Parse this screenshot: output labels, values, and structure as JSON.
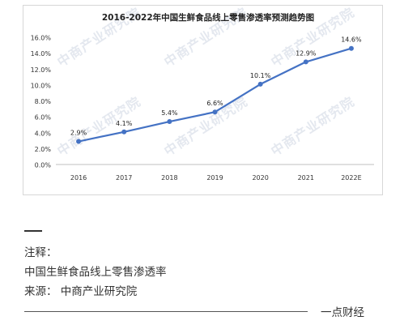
{
  "chart_data": {
    "type": "line",
    "title": "2016-2022年中国生鲜食品线上零售渗透率预测趋势图",
    "categories": [
      "2016",
      "2017",
      "2018",
      "2019",
      "2020",
      "2021",
      "2022E"
    ],
    "values": [
      2.9,
      4.1,
      5.4,
      6.6,
      10.1,
      12.9,
      14.6
    ],
    "data_labels": [
      "2.9%",
      "4.1%",
      "5.4%",
      "6.6%",
      "10.1%",
      "12.9%",
      "14.6%"
    ],
    "y_ticks": [
      "0.0%",
      "2.0%",
      "4.0%",
      "6.0%",
      "8.0%",
      "10.0%",
      "12.0%",
      "14.0%",
      "16.0%"
    ],
    "ylim": [
      0,
      16
    ],
    "ylabel": "",
    "xlabel": "",
    "grid": false,
    "legend": "none",
    "line_color": "#4472c4"
  },
  "watermark": {
    "text": "中商产业研究院"
  },
  "notes": {
    "label": "注释：",
    "description": "中国生鲜食品线上零售渗透率",
    "source": "来源：  中商产业研究院"
  },
  "footer": {
    "brand": "一点财经"
  }
}
